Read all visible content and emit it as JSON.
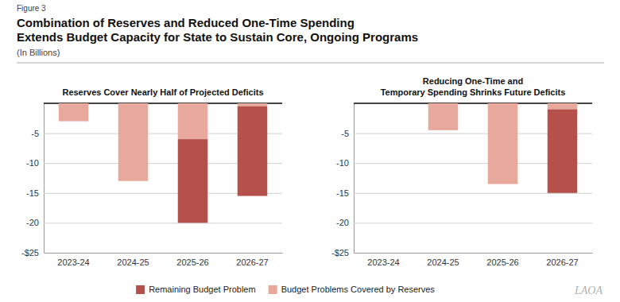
{
  "title": [
    "Combination of Reserves and Reduced One-Time Spending",
    "Extends Budget Capacity for State to Sustain Core, Ongoing Programs"
  ],
  "subtitle": "(In Billions)",
  "annotations": [
    "Figure 3",
    "LAOA"
  ],
  "chart_data": [
    {
      "type": "bar",
      "stacked": true,
      "title": "Reserves Cover Nearly Half of Projected Deficits",
      "categories": [
        "2023-24",
        "2024-25",
        "2025-26",
        "2026-27"
      ],
      "series": [
        {
          "name": "Budget Problems Covered by Reserves",
          "color": "#e8a89c",
          "values": [
            -3.0,
            -13.0,
            -6.0,
            -0.5
          ]
        },
        {
          "name": "Remaining Budget Problem",
          "color": "#b5504a",
          "values": [
            0.0,
            0.0,
            -14.0,
            -15.0
          ]
        }
      ],
      "ylim": [
        -25,
        0
      ],
      "yticks": [
        -5,
        -10,
        -15,
        -20,
        {
          "value": -25,
          "label": "-$25"
        }
      ],
      "grid": true,
      "legend": "bottom"
    },
    {
      "type": "bar",
      "stacked": true,
      "title": "Reducing One-Time and\nTemporary Spending Shrinks Future Deficits",
      "categories": [
        "2023-24",
        "2024-25",
        "2025-26",
        "2026-27"
      ],
      "series": [
        {
          "name": "Budget Problems Covered by Reserves",
          "color": "#e8a89c",
          "values": [
            0.0,
            -4.5,
            -13.5,
            -1.0
          ]
        },
        {
          "name": "Remaining Budget Problem",
          "color": "#b5504a",
          "values": [
            0.0,
            0.0,
            0.0,
            -14.0
          ]
        }
      ],
      "ylim": [
        -25,
        0
      ],
      "yticks": [
        -5,
        -10,
        -15,
        -20,
        {
          "value": -25,
          "label": "-$25"
        }
      ],
      "grid": true
    }
  ]
}
